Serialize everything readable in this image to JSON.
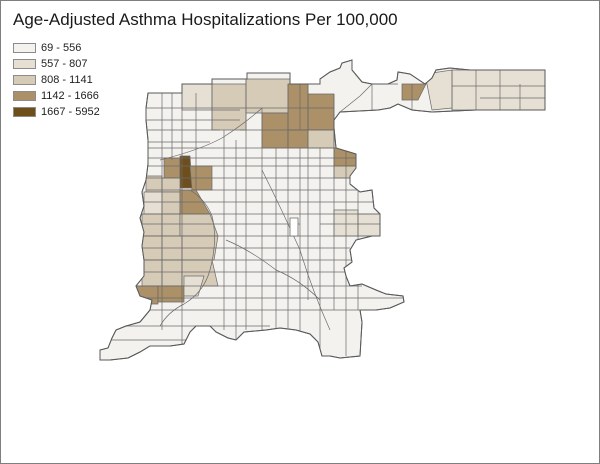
{
  "title": "Age-Adjusted Asthma Hospitalizations Per 100,000",
  "legend": [
    {
      "label": "69 - 556",
      "color": "#f3f2ef",
      "class": 0
    },
    {
      "label": "557 - 807",
      "color": "#e6e0d4",
      "class": 1
    },
    {
      "label": "808 - 1141",
      "color": "#d6cbb7",
      "class": 2
    },
    {
      "label": "1142 - 1666",
      "color": "#ab9068",
      "class": 3
    },
    {
      "label": "1667 - 5952",
      "color": "#6e4f1c",
      "class": 4
    }
  ],
  "colors": {
    "boundary": "#6a6a6a",
    "frame": "#7f7f7f"
  }
}
